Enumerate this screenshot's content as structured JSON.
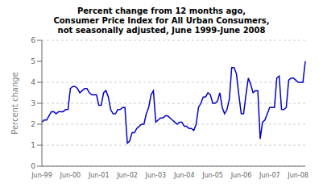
{
  "chart_data": {
    "type": "line",
    "title": "Percent change from 12 months ago,\nConsumer Price Index for All Urban Consumers,\nnot seasonally adjusted, June 1999-June 2008",
    "y_label": "Percent change",
    "color": "#0000cc",
    "grid": true,
    "ylim": [
      0,
      6
    ],
    "yticks": [
      0,
      1,
      2,
      3,
      4,
      5,
      6
    ],
    "categories": [
      "Jun-99",
      null,
      null,
      null,
      null,
      null,
      null,
      null,
      null,
      null,
      null,
      null,
      "Jun-00",
      null,
      null,
      null,
      null,
      null,
      null,
      null,
      null,
      null,
      null,
      null,
      "Jun-01",
      null,
      null,
      null,
      null,
      null,
      null,
      null,
      null,
      null,
      null,
      null,
      "Jun-02",
      null,
      null,
      null,
      null,
      null,
      null,
      null,
      null,
      null,
      null,
      null,
      "Jun-03",
      null,
      null,
      null,
      null,
      null,
      null,
      null,
      null,
      null,
      null,
      null,
      "Jun-04",
      null,
      null,
      null,
      null,
      null,
      null,
      null,
      null,
      null,
      null,
      null,
      "Jun-05",
      null,
      null,
      null,
      null,
      null,
      null,
      null,
      null,
      null,
      null,
      null,
      "Jun-06",
      null,
      null,
      null,
      null,
      null,
      null,
      null,
      null,
      null,
      null,
      null,
      "Jun-07",
      null,
      null,
      null,
      null,
      null,
      null,
      null,
      null,
      null,
      null,
      null,
      "Jun-08",
      null,
      null,
      null
    ],
    "values": [
      2.1,
      2.2,
      2.2,
      2.4,
      2.6,
      2.6,
      2.5,
      2.6,
      2.6,
      2.6,
      2.7,
      2.7,
      3.7,
      3.8,
      3.8,
      3.7,
      3.5,
      3.6,
      3.7,
      3.7,
      3.5,
      3.4,
      3.4,
      3.4,
      2.9,
      2.9,
      3.5,
      3.6,
      3.3,
      2.7,
      2.5,
      2.5,
      2.7,
      2.7,
      2.8,
      2.8,
      1.1,
      1.2,
      1.6,
      1.6,
      1.8,
      1.9,
      2.0,
      2.0,
      2.5,
      2.8,
      3.4,
      3.6,
      2.1,
      2.2,
      2.3,
      2.3,
      2.4,
      2.4,
      2.3,
      2.2,
      2.1,
      2.0,
      2.1,
      2.1,
      1.9,
      1.9,
      1.8,
      1.8,
      1.7,
      2.0,
      2.8,
      3.0,
      3.3,
      3.3,
      3.5,
      3.4,
      3.0,
      3.0,
      3.1,
      3.5,
      2.8,
      2.5,
      2.7,
      3.2,
      4.7,
      4.7,
      4.4,
      3.4,
      2.5,
      2.5,
      3.4,
      4.2,
      3.9,
      3.5,
      3.6,
      3.6,
      1.3,
      2.1,
      2.2,
      2.5,
      2.8,
      2.8,
      2.8,
      4.2,
      4.3,
      2.7,
      2.7,
      2.8,
      4.1,
      4.2,
      4.2,
      4.1,
      4.0,
      4.0,
      4.0,
      5.0
    ]
  }
}
